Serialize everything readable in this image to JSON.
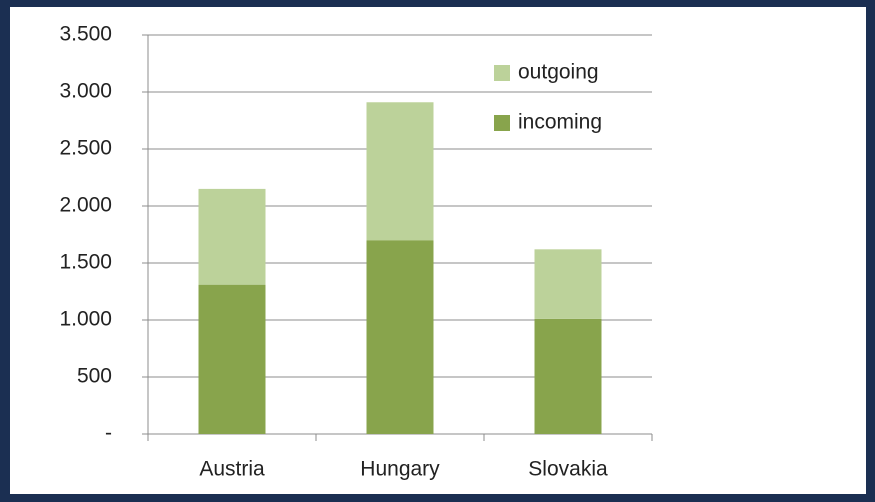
{
  "chart_data": {
    "type": "stacked_bar",
    "categories": [
      "Austria",
      "Hungary",
      "Slovakia"
    ],
    "series": [
      {
        "name": "incoming",
        "color": "#88a44c",
        "values": [
          1310,
          1700,
          1010
        ]
      },
      {
        "name": "outgoing",
        "color": "#bcd29a",
        "values": [
          840,
          1210,
          610
        ]
      }
    ],
    "ylim": [
      0,
      3500
    ],
    "yticks": [
      {
        "value": 0,
        "label": "-"
      },
      500,
      {
        "value": 1000,
        "label": "1.000"
      },
      {
        "value": 1500,
        "label": "1.500"
      },
      {
        "value": 2000,
        "label": "2.000"
      },
      {
        "value": 2500,
        "label": "2.500"
      },
      {
        "value": 3000,
        "label": "3.000"
      },
      {
        "value": 3500,
        "label": "3.500"
      }
    ],
    "grid": true,
    "legend": "top-right"
  }
}
